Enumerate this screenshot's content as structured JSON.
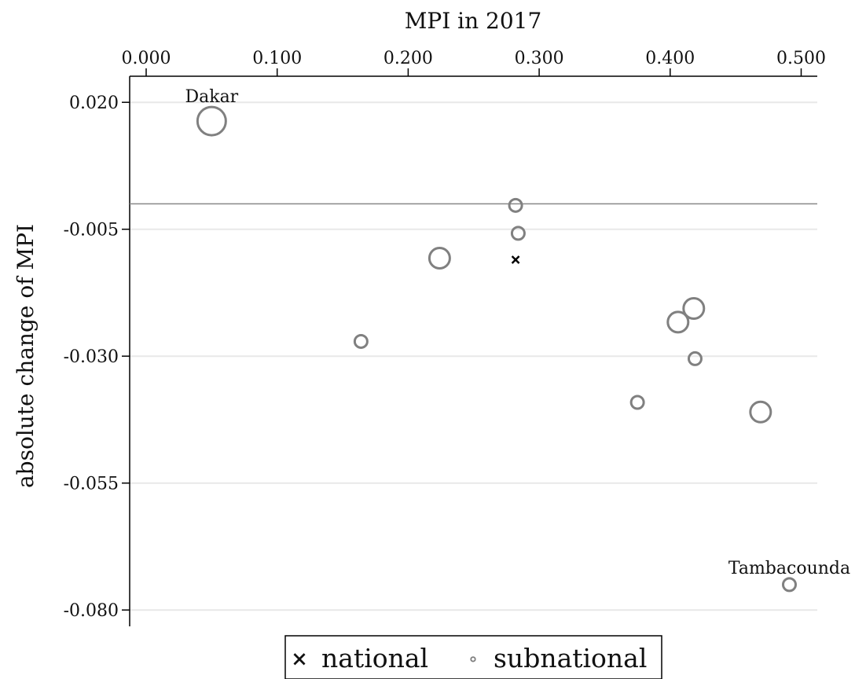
{
  "chart_data": {
    "type": "scatter",
    "title": "",
    "xlabel": "MPI in 2017",
    "ylabel": "absolute change of MPI",
    "xlim": [
      0,
      0.515
    ],
    "ylim": [
      -0.082,
      0.0225
    ],
    "x_ticks": [
      "0.000",
      "0.100",
      "0.200",
      "0.300",
      "0.400",
      "0.500"
    ],
    "x_tick_values": [
      0,
      0.1,
      0.2,
      0.3,
      0.4,
      0.5
    ],
    "y_ticks": [
      "0.020",
      "-0.005",
      "-0.030",
      "-0.055",
      "-0.080"
    ],
    "y_tick_values": [
      0.02,
      -0.005,
      -0.03,
      -0.055,
      -0.08
    ],
    "x_axis_position": "top",
    "reference_line_y": 0,
    "grid": "horizontal",
    "legend_position": "bottom",
    "series": [
      {
        "name": "national",
        "marker": "x",
        "color": "#000000",
        "points": [
          {
            "x": 0.282,
            "y": -0.011
          }
        ]
      },
      {
        "name": "subnational",
        "marker": "hollow-circle",
        "color": "#808080",
        "points": [
          {
            "x": 0.05,
            "y": 0.0163,
            "size": 3,
            "label": "Dakar"
          },
          {
            "x": 0.282,
            "y": -0.0003,
            "size": 1
          },
          {
            "x": 0.284,
            "y": -0.0058,
            "size": 1
          },
          {
            "x": 0.224,
            "y": -0.0107,
            "size": 2
          },
          {
            "x": 0.164,
            "y": -0.0271,
            "size": 1
          },
          {
            "x": 0.406,
            "y": -0.0233,
            "size": 2
          },
          {
            "x": 0.418,
            "y": -0.0206,
            "size": 2
          },
          {
            "x": 0.419,
            "y": -0.0305,
            "size": 1
          },
          {
            "x": 0.375,
            "y": -0.0391,
            "size": 1
          },
          {
            "x": 0.469,
            "y": -0.041,
            "size": 2
          },
          {
            "x": 0.491,
            "y": -0.075,
            "size": 1,
            "label": "Tambacounda"
          }
        ]
      }
    ]
  },
  "legend": {
    "national_marker": "×",
    "national_label": "national",
    "subnational_marker": "∘",
    "subnational_label": "subnational"
  }
}
